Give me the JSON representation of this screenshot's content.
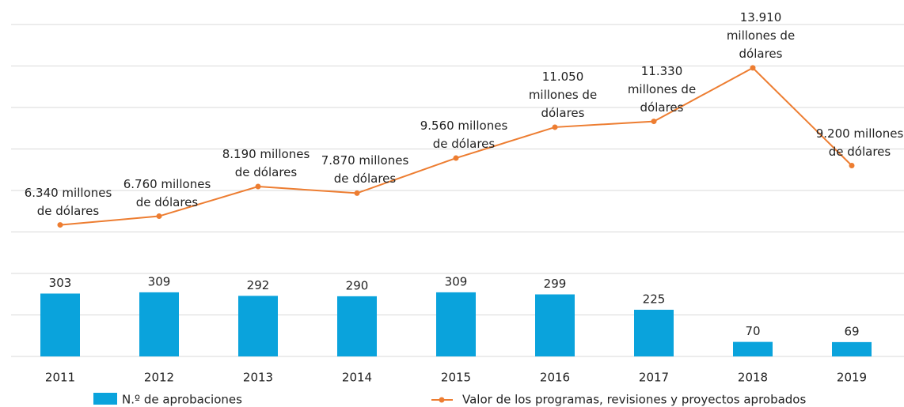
{
  "chart_data": {
    "type": "bar_line",
    "categories": [
      "2011",
      "2012",
      "2013",
      "2014",
      "2015",
      "2016",
      "2017",
      "2018",
      "2019"
    ],
    "series": [
      {
        "name": "N.º de aprobaciones",
        "type": "bar",
        "color": "#0aa3dc",
        "axis": "y",
        "values": [
          303,
          309,
          292,
          290,
          309,
          299,
          225,
          70,
          69
        ]
      },
      {
        "name": "Valor de los programas, revisiones y proyectos aprobados",
        "type": "line",
        "color": "#ed7d31",
        "axis": "y2",
        "values": [
          6340,
          6760,
          8190,
          7870,
          9560,
          11050,
          11330,
          13910,
          9200
        ],
        "value_labels": [
          "6.340 millones de dólares",
          "6.760 millones de dólares",
          "8.190 millones de dólares",
          "7.870 millones de dólares",
          "9.560 millones de dólares",
          "11.050 millones de dólares",
          "11.330 millones de dólares",
          "13.910 millones de dólares",
          "9.200 millones de dólares"
        ]
      }
    ],
    "ylim": [
      0,
      1600
    ],
    "yticks": [
      0,
      200,
      400,
      600,
      800,
      1000,
      1200,
      1400,
      1600
    ],
    "y2lim": [
      0,
      16000
    ],
    "y2ticks": [
      0,
      2000,
      4000,
      6000,
      8000,
      10000,
      12000,
      14000,
      16000
    ],
    "grid": true,
    "legend": "bottom"
  }
}
